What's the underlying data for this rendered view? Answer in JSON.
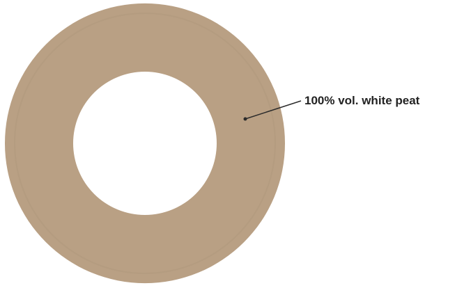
{
  "chart_data": {
    "type": "pie",
    "variant": "donut",
    "categories": [
      "white peat"
    ],
    "values": [
      100
    ],
    "unit": "% vol.",
    "annotations": [
      "100% vol. white peat"
    ],
    "legend": "none",
    "colors": {
      "slice": "#b9a084",
      "slice_shade": "#a98f73",
      "leader_line": "#2b2b2b",
      "label_text": "#222222",
      "background": "#ffffff"
    }
  }
}
